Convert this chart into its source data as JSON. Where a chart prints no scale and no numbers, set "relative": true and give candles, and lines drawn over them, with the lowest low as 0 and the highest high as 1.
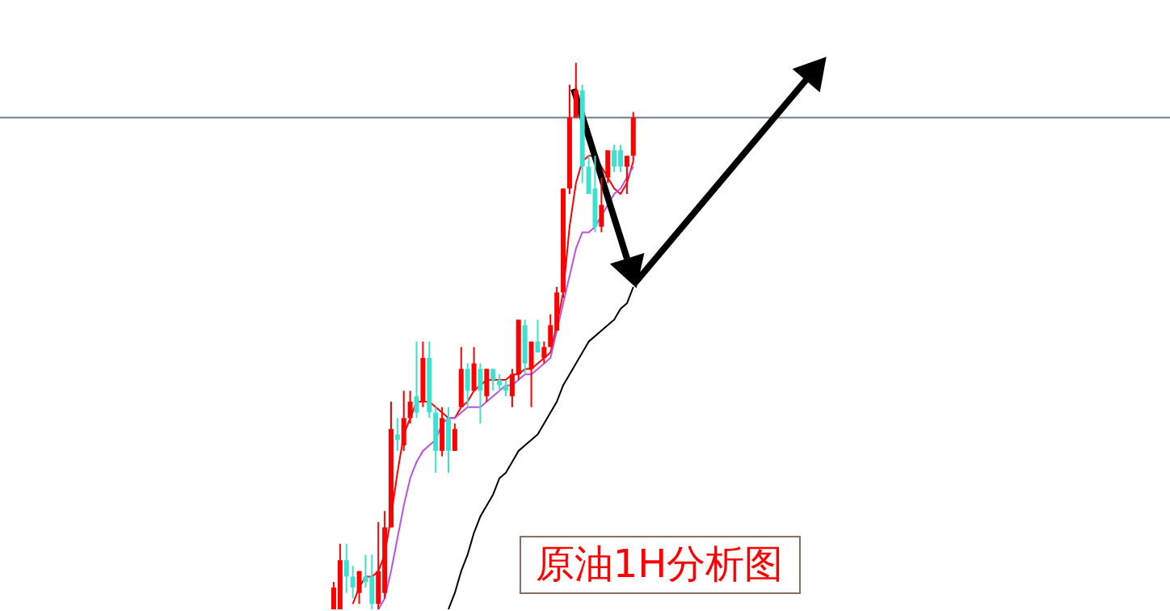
{
  "chart_data": {
    "type": "candlestick",
    "relative": true,
    "categories": [
      null,
      null,
      null,
      null,
      null,
      null,
      null,
      null,
      null,
      null,
      null,
      null,
      null,
      null,
      null,
      null,
      null,
      null,
      null,
      null,
      null,
      null,
      null,
      null,
      null,
      null,
      null,
      null,
      null,
      null,
      null,
      null,
      null,
      null,
      null,
      null,
      null,
      null,
      null,
      null,
      null,
      null,
      null,
      null,
      null,
      null,
      null,
      null
    ],
    "ohlc": [
      [
        0,
        0.05,
        0,
        0.04
      ],
      [
        0,
        0.12,
        0,
        0.09
      ],
      [
        0.09,
        0.12,
        0.03,
        0.06
      ],
      [
        0.06,
        0.08,
        0.02,
        0.04
      ],
      [
        0.03,
        0.07,
        0.01,
        0.07
      ],
      [
        0.06,
        0.1,
        0.04,
        0.05
      ],
      [
        0.06,
        0.1,
        0,
        0.01
      ],
      [
        0.01,
        0.16,
        0,
        0.07
      ],
      [
        0.03,
        0.18,
        0.02,
        0.15
      ],
      [
        0.15,
        0.38,
        0.15,
        0.33
      ],
      [
        0.32,
        0.35,
        0.29,
        0.31
      ],
      [
        0.3,
        0.4,
        0.29,
        0.35
      ],
      [
        0.35,
        0.4,
        0.34,
        0.38
      ],
      [
        0.39,
        0.49,
        0.35,
        0.36
      ],
      [
        0.38,
        0.49,
        0.37,
        0.46
      ],
      [
        0.46,
        0.49,
        0.35,
        0.36
      ],
      [
        0.36,
        0.37,
        0.25,
        0.29
      ],
      [
        0.29,
        0.37,
        0.28,
        0.35
      ],
      [
        0.35,
        0.37,
        0.25,
        0.29
      ],
      [
        0.29,
        0.34,
        0.29,
        0.33
      ],
      [
        0.37,
        0.48,
        0.37,
        0.44
      ],
      [
        0.44,
        0.45,
        0.37,
        0.4
      ],
      [
        0.4,
        0.48,
        0.4,
        0.45
      ],
      [
        0.44,
        0.45,
        0.34,
        0.4
      ],
      [
        0.39,
        0.44,
        0.38,
        0.44
      ],
      [
        0.44,
        0.44,
        0.4,
        0.42
      ],
      [
        0.42,
        0.43,
        0.4,
        0.41
      ],
      [
        0.41,
        0.42,
        0.39,
        0.4
      ],
      [
        0.39,
        0.44,
        0.37,
        0.43
      ],
      [
        0.43,
        0.53,
        0.42,
        0.53
      ],
      [
        0.52,
        0.53,
        0.43,
        0.45
      ],
      [
        0.44,
        0.49,
        0.37,
        0.49
      ],
      [
        0.49,
        0.53,
        0.47,
        0.47
      ],
      [
        0.46,
        0.49,
        0.45,
        0.48
      ],
      [
        0.48,
        0.54,
        0.48,
        0.52
      ],
      [
        0.51,
        0.59,
        0.51,
        0.58
      ],
      [
        0.58,
        0.77,
        0.57,
        0.77
      ],
      [
        0.77,
        0.96,
        0.76,
        0.9
      ],
      [
        0.9,
        1,
        0.9,
        0.95
      ],
      [
        0.95,
        0.96,
        0.78,
        0.81
      ],
      [
        0.81,
        0.83,
        0.76,
        0.76
      ],
      [
        0.77,
        0.83,
        0.69,
        0.7
      ],
      [
        0.7,
        0.79,
        0.69,
        0.74
      ],
      [
        0.79,
        0.84,
        0.78,
        0.84
      ],
      [
        0.84,
        0.85,
        0.8,
        0.81
      ],
      [
        0.84,
        0.85,
        0.8,
        0.81
      ],
      [
        0.81,
        0.83,
        0.76,
        0.83
      ],
      [
        0.83,
        0.91,
        0.82,
        0.9
      ]
    ],
    "colors": [
      "#ff0000",
      "#ff0000",
      "#40e0d0",
      "#40e0d0",
      "#ff0000",
      "#40e0d0",
      "#40e0d0",
      "#ff0000",
      "#ff0000",
      "#ff0000",
      "#40e0d0",
      "#ff0000",
      "#ff0000",
      "#40e0d0",
      "#ff0000",
      "#40e0d0",
      "#40e0d0",
      "#ff0000",
      "#40e0d0",
      "#ff0000",
      "#ff0000",
      "#40e0d0",
      "#ff0000",
      "#40e0d0",
      "#ff0000",
      "#40e0d0",
      "#40e0d0",
      "#40e0d0",
      "#ff0000",
      "#ff0000",
      "#40e0d0",
      "#ff0000",
      "#40e0d0",
      "#ff0000",
      "#ff0000",
      "#ff0000",
      "#ff0000",
      "#ff0000",
      "#ff0000",
      "#40e0d0",
      "#40e0d0",
      "#40e0d0",
      "#ff0000",
      "#ff0000",
      "#40e0d0",
      "#40e0d0",
      "#ff0000",
      "#ff0000"
    ],
    "series": [
      {
        "type": "line",
        "color": "#ff0000",
        "values": [
          null,
          null,
          null,
          0.01,
          0.04,
          0.06,
          0.06,
          0.07,
          0.1,
          0.17,
          0.25,
          0.32,
          0.35,
          0.38,
          0.38,
          0.38,
          0.37,
          0.36,
          0.35,
          0.35,
          0.37,
          0.38,
          0.4,
          0.41,
          0.42,
          0.42,
          0.42,
          0.42,
          0.43,
          0.43,
          0.44,
          0.44,
          0.45,
          0.46,
          0.47,
          0.52,
          0.58,
          0.7,
          0.78,
          0.82,
          0.83,
          0.83,
          0.81,
          0.79,
          0.77,
          0.76,
          0.78,
          0.82
        ]
      },
      {
        "type": "line",
        "color": "#c050e0",
        "values": [
          null,
          null,
          null,
          null,
          null,
          null,
          null,
          0,
          0.02,
          0.07,
          0.13,
          0.19,
          0.24,
          0.27,
          0.29,
          0.3,
          0.31,
          0.34,
          0.35,
          0.35,
          0.36,
          0.37,
          0.37,
          0.37,
          0.38,
          0.39,
          0.4,
          0.41,
          0.41,
          0.42,
          0.43,
          0.43,
          0.44,
          0.45,
          0.46,
          0.51,
          0.56,
          0.61,
          0.66,
          0.69,
          0.69,
          0.7,
          0.72,
          0.74,
          0.76,
          0.77,
          0.79,
          0.81
        ]
      },
      {
        "type": "line",
        "color": "#000000",
        "values": [
          null,
          null,
          null,
          null,
          null,
          null,
          null,
          null,
          null,
          null,
          null,
          null,
          null,
          null,
          null,
          null,
          null,
          null,
          0,
          0.03,
          0.07,
          0.1,
          0.14,
          0.17,
          0.19,
          0.21,
          0.24,
          0.25,
          0.27,
          0.29,
          0.3,
          0.31,
          0.32,
          0.34,
          0.36,
          0.38,
          0.41,
          0.43,
          0.45,
          0.47,
          0.49,
          0.5,
          0.51,
          0.52,
          0.53,
          0.55,
          0.56,
          0.59
        ]
      }
    ],
    "ref_lines": [
      {
        "axis": "y",
        "value": 0.9,
        "color": "#6e7f8f"
      }
    ],
    "annotations": [
      "原油1H分析图"
    ]
  }
}
